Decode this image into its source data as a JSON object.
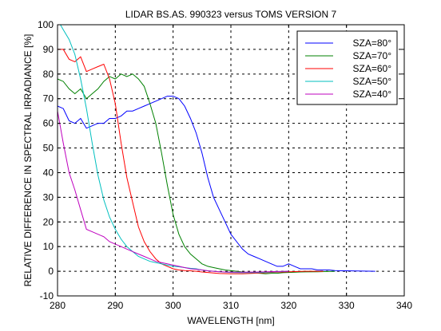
{
  "chart_data": {
    "type": "line",
    "title": "LIDAR BS.AS. 990323 versus TOMS VERSION 7",
    "xlabel": "WAVELENGTH [nm]",
    "ylabel": "RELATIVE DIFFERENCE IN SPECTRAL IRRADIANCE [%]",
    "xlim": [
      280,
      340
    ],
    "ylim": [
      -10,
      100
    ],
    "xticks": [
      280,
      290,
      300,
      310,
      320,
      330,
      340
    ],
    "yticks": [
      -10,
      0,
      10,
      20,
      30,
      40,
      50,
      60,
      70,
      80,
      90,
      100
    ],
    "grid": true,
    "legend_position": "top-right",
    "series": [
      {
        "name": "SZA=80°",
        "color": "#0000ff",
        "x": [
          280,
          281,
          282,
          283,
          284,
          285,
          286,
          287,
          288,
          289,
          290,
          291,
          292,
          293,
          294,
          295,
          296,
          297,
          298,
          299,
          300,
          301,
          302,
          303,
          304,
          305,
          306,
          307,
          308,
          309,
          310,
          311,
          312,
          313,
          314,
          315,
          316,
          317,
          318,
          319,
          320,
          321,
          322,
          323,
          324,
          325,
          326,
          327,
          328,
          329,
          330,
          332,
          335
        ],
        "y": [
          67,
          66,
          61,
          60,
          62,
          58,
          59,
          60,
          60,
          62,
          62,
          63,
          65,
          65,
          66,
          67,
          68,
          69,
          70,
          71,
          71,
          70,
          67,
          62,
          56,
          48,
          38,
          30,
          25,
          20,
          15,
          12,
          9,
          7,
          6,
          5,
          4,
          3,
          2,
          2,
          3,
          2,
          1,
          1,
          1,
          0.5,
          0.5,
          0.5,
          0.3,
          0.2,
          0.2,
          0.1,
          0
        ]
      },
      {
        "name": "SZA=70°",
        "color": "#008000",
        "x": [
          280,
          281,
          282,
          283,
          284,
          285,
          286,
          287,
          288,
          289,
          290,
          291,
          292,
          293,
          294,
          295,
          296,
          297,
          298,
          299,
          300,
          301,
          302,
          303,
          304,
          305,
          306,
          307,
          308,
          309,
          310,
          311,
          312,
          313,
          314,
          315,
          316,
          317,
          318,
          319,
          320,
          322,
          325,
          328
        ],
        "y": [
          78,
          77,
          74,
          72,
          74,
          70,
          72,
          74,
          77,
          79,
          78,
          80,
          79,
          80,
          78,
          75,
          68,
          60,
          48,
          35,
          23,
          15,
          10,
          7,
          5,
          3,
          2,
          1.5,
          1,
          0.5,
          0.3,
          0,
          -0.3,
          -0.5,
          -0.7,
          -0.8,
          -1,
          -0.8,
          -0.8,
          -0.6,
          -0.5,
          -0.3,
          -0.2,
          0
        ]
      },
      {
        "name": "SZA=60°",
        "color": "#ff0000",
        "x": [
          280,
          281,
          282,
          283,
          284,
          285,
          286,
          287,
          288,
          289,
          290,
          291,
          292,
          293,
          294,
          295,
          296,
          297,
          298,
          299,
          300,
          301,
          302,
          303,
          304,
          305,
          306,
          307,
          308,
          310,
          312,
          314,
          316,
          318,
          320,
          323,
          326
        ],
        "y": [
          90,
          90,
          86,
          85,
          87,
          81,
          82,
          83,
          84,
          78,
          68,
          52,
          38,
          28,
          18,
          12,
          8,
          5,
          3,
          2,
          1,
          0.5,
          0.3,
          0.2,
          0,
          -0.3,
          -0.5,
          -0.7,
          -0.9,
          -1,
          -1,
          -0.8,
          -0.6,
          -0.4,
          -0.2,
          0,
          0
        ]
      },
      {
        "name": "SZA=50°",
        "color": "#00bfbf",
        "x": [
          280,
          280.5,
          281,
          282,
          283,
          284,
          285,
          286,
          287,
          288,
          289,
          290,
          291,
          292,
          293,
          294,
          295,
          296,
          297,
          298,
          299,
          300,
          301,
          302,
          303,
          304,
          305,
          306,
          308,
          310,
          312,
          315,
          318,
          320
        ],
        "y": [
          100,
          100,
          98,
          94,
          88,
          78,
          66,
          52,
          39,
          29,
          22,
          17,
          13,
          10,
          8,
          6,
          5,
          4,
          3.5,
          3,
          2.5,
          2,
          1.8,
          1.5,
          1.2,
          1,
          0.5,
          0.2,
          -0.2,
          -0.5,
          -0.6,
          -0.5,
          -0.2,
          0
        ]
      },
      {
        "name": "SZA=40°",
        "color": "#bf00bf",
        "x": [
          280,
          281,
          282,
          283,
          284,
          285,
          286,
          287,
          288,
          289,
          290,
          291,
          292,
          293,
          294,
          295,
          296,
          297,
          298,
          299,
          300,
          301,
          302,
          303,
          304,
          305,
          306,
          308,
          310,
          312,
          315,
          318,
          320
        ],
        "y": [
          65,
          52,
          40,
          33,
          25,
          17,
          16,
          15,
          14,
          12,
          11,
          10,
          9,
          8,
          7,
          6,
          5,
          4,
          3.5,
          3,
          2.5,
          2,
          1.5,
          1,
          0.8,
          0.5,
          0.2,
          -0.2,
          -0.4,
          -0.4,
          -0.3,
          -0.1,
          0
        ]
      }
    ]
  }
}
